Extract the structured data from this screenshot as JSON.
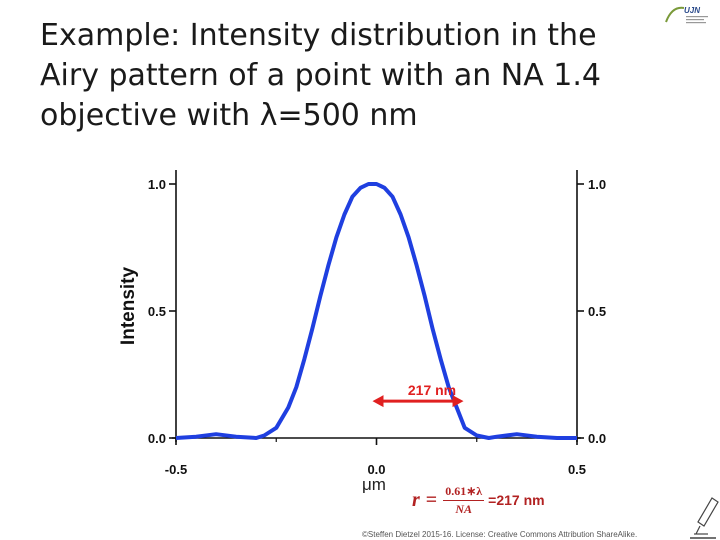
{
  "title": {
    "line1": "Example: Intensity distribution in the",
    "line2": "Airy pattern of a point with an NA 1.4",
    "line3": "objective with λ=500 nm"
  },
  "logo": {
    "text": "UJN"
  },
  "formula": {
    "lhs": "r",
    "equals": "=",
    "numerator": "0.61∗λ",
    "denominator": "NA",
    "result": "=217 nm"
  },
  "copyright": "©Steffen Dietzel 2015-16. License: Creative Commons Attribution ShareAlike.",
  "colors": {
    "curve": "#1f3fe0",
    "arrow": "#e02020",
    "formula": "#b22222"
  },
  "chart_data": {
    "type": "line",
    "xlabel": "μm",
    "ylabel": "Intensity",
    "xlim": [
      -0.5,
      0.5
    ],
    "ylim": [
      0,
      1
    ],
    "xticks": [
      "-0.5",
      "0.0",
      "0.5"
    ],
    "yticks": [
      "0.0",
      "0.5",
      "1.0"
    ],
    "right_yticks": [
      "0.0",
      "0.5",
      "1.0"
    ],
    "series": [
      {
        "x": [
          -0.5,
          -0.45,
          -0.4,
          -0.35,
          -0.3,
          -0.28,
          -0.25,
          -0.22,
          -0.2,
          -0.18,
          -0.16,
          -0.14,
          -0.12,
          -0.1,
          -0.08,
          -0.06,
          -0.04,
          -0.02,
          0.0,
          0.02,
          0.04,
          0.06,
          0.08,
          0.1,
          0.12,
          0.14,
          0.16,
          0.18,
          0.2,
          0.22,
          0.25,
          0.28,
          0.3,
          0.35,
          0.4,
          0.45,
          0.5
        ],
        "y": [
          0.0,
          0.005,
          0.015,
          0.005,
          0.0,
          0.01,
          0.04,
          0.12,
          0.2,
          0.31,
          0.43,
          0.56,
          0.68,
          0.79,
          0.88,
          0.95,
          0.985,
          1.0,
          1.0,
          0.985,
          0.95,
          0.88,
          0.79,
          0.68,
          0.56,
          0.43,
          0.31,
          0.2,
          0.12,
          0.04,
          0.01,
          0.0,
          0.005,
          0.015,
          0.005,
          0.0,
          0.0
        ]
      }
    ],
    "annotations": [
      {
        "text": "217 nm",
        "x_from": -0.01,
        "x_to": 0.217,
        "y": 0.145
      }
    ]
  }
}
